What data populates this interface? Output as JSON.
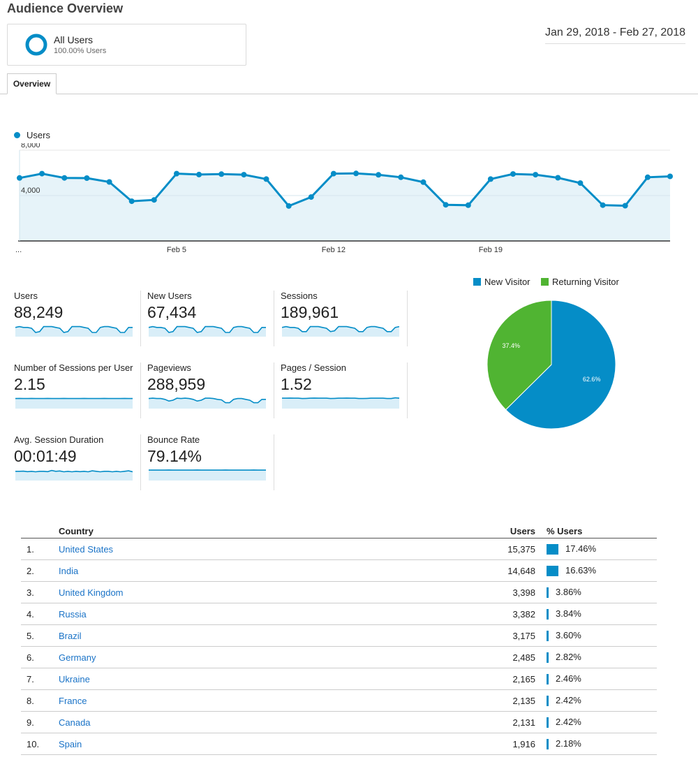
{
  "page_title": "Audience Overview",
  "segment": {
    "name": "All Users",
    "sub": "100.00% Users"
  },
  "date_range": "Jan 29, 2018 - Feb 27, 2018",
  "tabs": [
    "Overview"
  ],
  "colors": {
    "primary": "#058dc7",
    "returning": "#50b432",
    "area": "#e6f3f9",
    "link": "#1a73c7"
  },
  "chart_data": [
    {
      "type": "line",
      "legend": [
        "Users"
      ],
      "y_tick_labels": [
        "8,000",
        "4,000"
      ],
      "x_tick_labels": [
        "...",
        "Feb 5",
        "Feb 12",
        "Feb 19"
      ],
      "ylim": [
        0,
        8000
      ],
      "series": [
        {
          "name": "Users",
          "values": [
            5550,
            5930,
            5560,
            5540,
            5200,
            3500,
            3620,
            5930,
            5850,
            5890,
            5840,
            5450,
            3080,
            3870,
            5930,
            5950,
            5830,
            5610,
            5180,
            3190,
            3150,
            5450,
            5900,
            5840,
            5570,
            5100,
            3160,
            3110,
            5610,
            5690
          ]
        }
      ]
    },
    {
      "type": "pie",
      "legend": [
        "New Visitor",
        "Returning Visitor"
      ],
      "slices": [
        {
          "name": "New Visitor",
          "value": 62.6,
          "label": "62.6%"
        },
        {
          "name": "Returning Visitor",
          "value": 37.4,
          "label": "37.4%"
        }
      ]
    }
  ],
  "metrics": [
    {
      "label": "Users",
      "value": "88,249",
      "spark": [
        0.55,
        0.6,
        0.55,
        0.55,
        0.5,
        0.25,
        0.3,
        0.6,
        0.6,
        0.6,
        0.55,
        0.5,
        0.25,
        0.3,
        0.6,
        0.6,
        0.6,
        0.55,
        0.5,
        0.25,
        0.25,
        0.55,
        0.6,
        0.6,
        0.55,
        0.5,
        0.25,
        0.25,
        0.55,
        0.55
      ]
    },
    {
      "label": "New Users",
      "value": "67,434",
      "spark": [
        0.55,
        0.6,
        0.55,
        0.55,
        0.5,
        0.25,
        0.3,
        0.6,
        0.6,
        0.6,
        0.55,
        0.5,
        0.25,
        0.3,
        0.6,
        0.6,
        0.6,
        0.55,
        0.5,
        0.25,
        0.25,
        0.55,
        0.6,
        0.6,
        0.55,
        0.5,
        0.25,
        0.25,
        0.55,
        0.55
      ]
    },
    {
      "label": "Sessions",
      "value": "189,961",
      "spark": [
        0.55,
        0.6,
        0.55,
        0.55,
        0.5,
        0.3,
        0.3,
        0.6,
        0.6,
        0.6,
        0.55,
        0.5,
        0.3,
        0.35,
        0.6,
        0.6,
        0.6,
        0.55,
        0.5,
        0.3,
        0.3,
        0.55,
        0.6,
        0.6,
        0.55,
        0.5,
        0.3,
        0.3,
        0.55,
        0.6
      ]
    },
    {
      "label": "Number of Sessions per User",
      "value": "2.15",
      "spark": [
        0.6,
        0.61,
        0.6,
        0.6,
        0.61,
        0.6,
        0.6,
        0.6,
        0.61,
        0.6,
        0.6,
        0.6,
        0.61,
        0.6,
        0.6,
        0.6,
        0.6,
        0.61,
        0.6,
        0.6,
        0.6,
        0.6,
        0.61,
        0.6,
        0.6,
        0.6,
        0.6,
        0.61,
        0.6,
        0.6
      ]
    },
    {
      "label": "Pageviews",
      "value": "288,959",
      "spark": [
        0.6,
        0.62,
        0.6,
        0.6,
        0.55,
        0.45,
        0.5,
        0.62,
        0.6,
        0.62,
        0.6,
        0.55,
        0.45,
        0.5,
        0.62,
        0.62,
        0.6,
        0.55,
        0.52,
        0.35,
        0.35,
        0.55,
        0.6,
        0.6,
        0.55,
        0.5,
        0.35,
        0.35,
        0.55,
        0.55
      ]
    },
    {
      "label": "Pages / Session",
      "value": "1.52",
      "spark": [
        0.62,
        0.62,
        0.63,
        0.62,
        0.62,
        0.6,
        0.61,
        0.62,
        0.63,
        0.62,
        0.62,
        0.62,
        0.6,
        0.61,
        0.62,
        0.62,
        0.63,
        0.62,
        0.62,
        0.6,
        0.6,
        0.61,
        0.62,
        0.62,
        0.62,
        0.62,
        0.6,
        0.6,
        0.64,
        0.62
      ]
    },
    {
      "label": "Avg. Session Duration",
      "value": "00:01:49",
      "spark": [
        0.55,
        0.55,
        0.56,
        0.53,
        0.55,
        0.52,
        0.55,
        0.55,
        0.53,
        0.6,
        0.55,
        0.57,
        0.52,
        0.55,
        0.52,
        0.55,
        0.53,
        0.55,
        0.52,
        0.58,
        0.55,
        0.52,
        0.55,
        0.55,
        0.52,
        0.55,
        0.52,
        0.55,
        0.58,
        0.52
      ]
    },
    {
      "label": "Bounce Rate",
      "value": "79.14%",
      "spark": [
        0.62,
        0.62,
        0.62,
        0.62,
        0.62,
        0.63,
        0.62,
        0.62,
        0.62,
        0.62,
        0.62,
        0.62,
        0.63,
        0.62,
        0.62,
        0.62,
        0.62,
        0.62,
        0.62,
        0.63,
        0.62,
        0.62,
        0.62,
        0.62,
        0.62,
        0.62,
        0.63,
        0.62,
        0.62,
        0.62
      ]
    }
  ],
  "table": {
    "headers": {
      "country": "Country",
      "users": "Users",
      "pct": "% Users"
    },
    "rows": [
      {
        "rank": "1.",
        "country": "United States",
        "users": "15,375",
        "pct": "17.46%",
        "share": 17.46
      },
      {
        "rank": "2.",
        "country": "India",
        "users": "14,648",
        "pct": "16.63%",
        "share": 16.63
      },
      {
        "rank": "3.",
        "country": "United Kingdom",
        "users": "3,398",
        "pct": "3.86%",
        "share": 3.86
      },
      {
        "rank": "4.",
        "country": "Russia",
        "users": "3,382",
        "pct": "3.84%",
        "share": 3.84
      },
      {
        "rank": "5.",
        "country": "Brazil",
        "users": "3,175",
        "pct": "3.60%",
        "share": 3.6
      },
      {
        "rank": "6.",
        "country": "Germany",
        "users": "2,485",
        "pct": "2.82%",
        "share": 2.82
      },
      {
        "rank": "7.",
        "country": "Ukraine",
        "users": "2,165",
        "pct": "2.46%",
        "share": 2.46
      },
      {
        "rank": "8.",
        "country": "France",
        "users": "2,135",
        "pct": "2.42%",
        "share": 2.42
      },
      {
        "rank": "9.",
        "country": "Canada",
        "users": "2,131",
        "pct": "2.42%",
        "share": 2.42
      },
      {
        "rank": "10.",
        "country": "Spain",
        "users": "1,916",
        "pct": "2.18%",
        "share": 2.18
      }
    ]
  }
}
